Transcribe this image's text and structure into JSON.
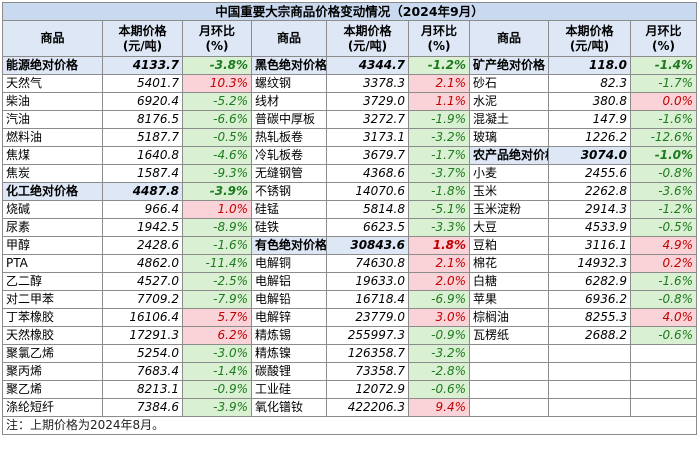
{
  "title": "中国重要大宗商品价格变动情况（2024年9月）",
  "headers": [
    "商品",
    "本期价格\n(元/吨)",
    "月环比\n(%)"
  ],
  "header_lines": {
    "price1": "本期价格",
    "price2": "(元/吨)",
    "mom1": "月环比",
    "mom2": "(%)"
  },
  "col1": [
    {
      "name": "能源绝对价格",
      "price": "4133.7",
      "mom": "-3.8%",
      "abs": true
    },
    {
      "name": "天然气",
      "price": "5401.7",
      "mom": "10.3%"
    },
    {
      "name": "柴油",
      "price": "6920.4",
      "mom": "-5.2%"
    },
    {
      "name": "汽油",
      "price": "8176.5",
      "mom": "-6.6%"
    },
    {
      "name": "燃料油",
      "price": "5187.7",
      "mom": "-0.5%"
    },
    {
      "name": "焦煤",
      "price": "1640.8",
      "mom": "-4.6%"
    },
    {
      "name": "焦炭",
      "price": "1587.4",
      "mom": "-9.3%"
    },
    {
      "name": "化工绝对价格",
      "price": "4487.8",
      "mom": "-3.9%",
      "abs": true
    },
    {
      "name": "烧碱",
      "price": "966.4",
      "mom": "1.0%"
    },
    {
      "name": "尿素",
      "price": "1942.5",
      "mom": "-8.9%"
    },
    {
      "name": "甲醇",
      "price": "2428.6",
      "mom": "-1.6%"
    },
    {
      "name": "PTA",
      "price": "4862.0",
      "mom": "-11.4%"
    },
    {
      "name": "乙二醇",
      "price": "4527.0",
      "mom": "-2.5%"
    },
    {
      "name": "对二甲苯",
      "price": "7709.2",
      "mom": "-7.9%"
    },
    {
      "name": "丁苯橡胶",
      "price": "16106.4",
      "mom": "5.7%"
    },
    {
      "name": "天然橡胶",
      "price": "17291.3",
      "mom": "6.2%"
    },
    {
      "name": "聚氯乙烯",
      "price": "5254.0",
      "mom": "-3.0%"
    },
    {
      "name": "聚丙烯",
      "price": "7683.4",
      "mom": "-1.4%"
    },
    {
      "name": "聚乙烯",
      "price": "8213.1",
      "mom": "-0.9%"
    },
    {
      "name": "涤纶短纤",
      "price": "7384.6",
      "mom": "-3.9%"
    }
  ],
  "col2": [
    {
      "name": "黑色绝对价格",
      "price": "4344.7",
      "mom": "-1.2%",
      "abs": true
    },
    {
      "name": "螺纹钢",
      "price": "3378.3",
      "mom": "2.1%"
    },
    {
      "name": "线材",
      "price": "3729.0",
      "mom": "1.1%"
    },
    {
      "name": "普碳中厚板",
      "price": "3272.7",
      "mom": "-1.9%"
    },
    {
      "name": "热轧板卷",
      "price": "3173.1",
      "mom": "-3.2%"
    },
    {
      "name": "冷轧板卷",
      "price": "3679.7",
      "mom": "-1.7%"
    },
    {
      "name": "无缝钢管",
      "price": "4368.6",
      "mom": "-3.7%"
    },
    {
      "name": "不锈钢",
      "price": "14070.6",
      "mom": "-1.8%"
    },
    {
      "name": "硅锰",
      "price": "5814.8",
      "mom": "-5.1%"
    },
    {
      "name": "硅铁",
      "price": "6623.5",
      "mom": "-3.3%"
    },
    {
      "name": "有色绝对价格",
      "price": "30843.6",
      "mom": "1.8%",
      "abs": true
    },
    {
      "name": "电解铜",
      "price": "74630.8",
      "mom": "2.1%"
    },
    {
      "name": "电解铝",
      "price": "19633.0",
      "mom": "2.0%"
    },
    {
      "name": "电解铅",
      "price": "16718.4",
      "mom": "-6.9%"
    },
    {
      "name": "电解锌",
      "price": "23779.0",
      "mom": "3.0%"
    },
    {
      "name": "精炼锡",
      "price": "255997.3",
      "mom": "-0.9%"
    },
    {
      "name": "精炼镍",
      "price": "126358.7",
      "mom": "-3.2%"
    },
    {
      "name": "碳酸锂",
      "price": "73358.7",
      "mom": "-2.8%"
    },
    {
      "name": "工业硅",
      "price": "12072.9",
      "mom": "-0.6%"
    },
    {
      "name": "氧化镨钕",
      "price": "422206.3",
      "mom": "9.4%"
    }
  ],
  "col3": [
    {
      "name": "矿产绝对价格",
      "price": "118.0",
      "mom": "-1.4%",
      "abs": true
    },
    {
      "name": "砂石",
      "price": "82.3",
      "mom": "-1.7%"
    },
    {
      "name": "水泥",
      "price": "380.8",
      "mom": "0.0%"
    },
    {
      "name": "混凝土",
      "price": "147.9",
      "mom": "-1.6%"
    },
    {
      "name": "玻璃",
      "price": "1226.2",
      "mom": "-12.6%"
    },
    {
      "name": "农产品绝对价格",
      "price": "3074.0",
      "mom": "-1.0%",
      "abs": true
    },
    {
      "name": "小麦",
      "price": "2455.6",
      "mom": "-0.8%"
    },
    {
      "name": "玉米",
      "price": "2262.8",
      "mom": "-3.6%"
    },
    {
      "name": "玉米淀粉",
      "price": "2914.3",
      "mom": "-1.2%"
    },
    {
      "name": "大豆",
      "price": "4533.9",
      "mom": "-0.5%"
    },
    {
      "name": "豆粕",
      "price": "3116.1",
      "mom": "4.9%"
    },
    {
      "name": "棉花",
      "price": "14932.3",
      "mom": "0.2%"
    },
    {
      "name": "白糖",
      "price": "6282.9",
      "mom": "-1.6%"
    },
    {
      "name": "苹果",
      "price": "6936.2",
      "mom": "-0.8%"
    },
    {
      "name": "棕榈油",
      "price": "8255.3",
      "mom": "4.0%"
    },
    {
      "name": "瓦楞纸",
      "price": "2688.2",
      "mom": "-0.6%"
    }
  ],
  "note": "注：上期价格为2024年8月。",
  "colors": {
    "up_bg": "#f9d3d8",
    "up_fg": "#c00000",
    "down_bg": "#d9f0d3",
    "down_fg": "#1e7a1e",
    "header_bg": "#dde7f5",
    "title_bg": "#c9daf0"
  }
}
